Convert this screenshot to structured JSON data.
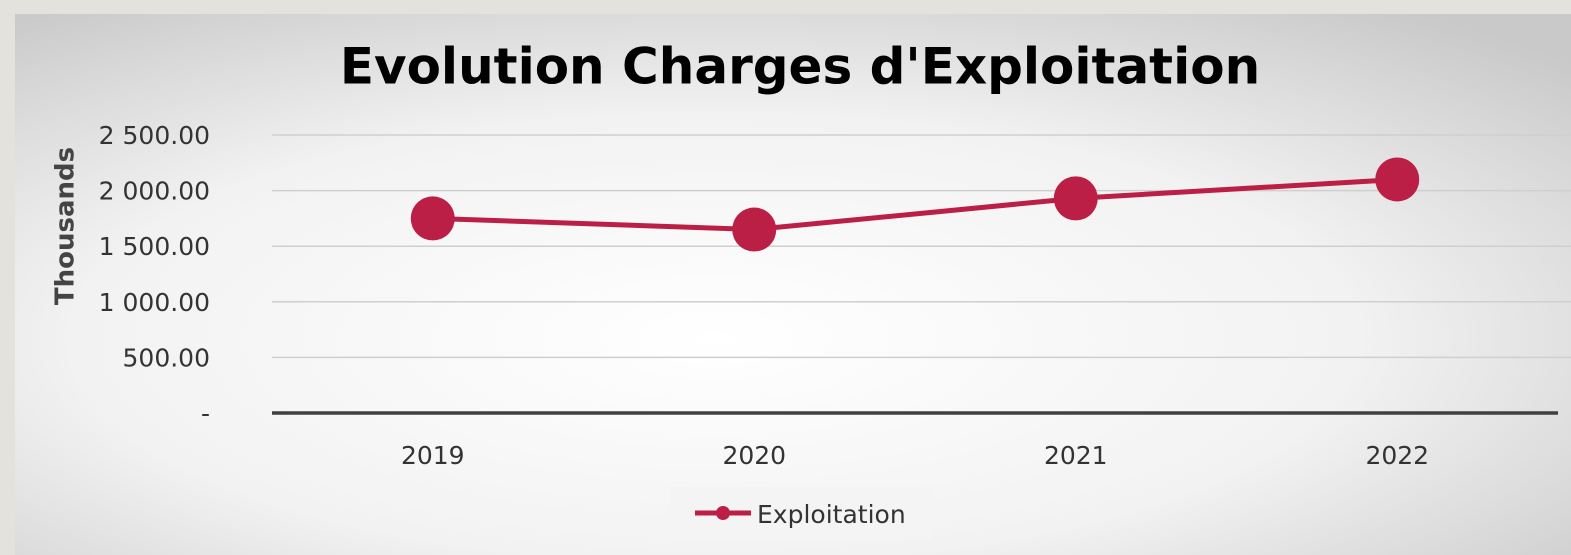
{
  "chart_data": {
    "type": "line",
    "title": "Evolution Charges d'Exploitation",
    "y_label": "Thousands",
    "categories": [
      "2019",
      "2020",
      "2021",
      "2022"
    ],
    "series": [
      {
        "name": "Exploitation",
        "color": "#bb1f45",
        "values": [
          1750,
          1650,
          1930,
          2100
        ]
      }
    ],
    "ylim": [
      0,
      2500
    ],
    "yticks": [
      {
        "value": 0,
        "label": "-"
      },
      {
        "value": 500,
        "label": "500.00"
      },
      {
        "value": 1000,
        "label": "1 000.00"
      },
      {
        "value": 1500,
        "label": "1 500.00"
      },
      {
        "value": 2000,
        "label": "2 000.00"
      },
      {
        "value": 2500,
        "label": "2 500.00"
      }
    ],
    "grid": true,
    "legend": "bottom"
  }
}
